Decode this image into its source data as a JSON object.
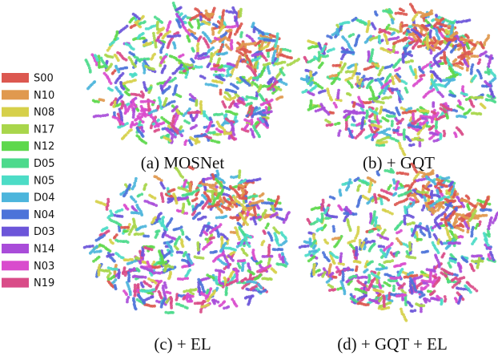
{
  "legend": [
    {
      "label": "S00",
      "color": "#dc5850"
    },
    {
      "label": "N10",
      "color": "#e0994f"
    },
    {
      "label": "N08",
      "color": "#d6d04a"
    },
    {
      "label": "N17",
      "color": "#a9d64b"
    },
    {
      "label": "N12",
      "color": "#5ed84c"
    },
    {
      "label": "D05",
      "color": "#4cda8c"
    },
    {
      "label": "N05",
      "color": "#4cdcc6"
    },
    {
      "label": "D04",
      "color": "#4cb5dc"
    },
    {
      "label": "N04",
      "color": "#4c73d9"
    },
    {
      "label": "D03",
      "color": "#6c55d9"
    },
    {
      "label": "N14",
      "color": "#a94cd9"
    },
    {
      "label": "N03",
      "color": "#d94ccd"
    },
    {
      "label": "N19",
      "color": "#d94c88"
    }
  ],
  "panels": [
    {
      "caption": "(a) MOSNet"
    },
    {
      "caption": "(b) + GQT"
    },
    {
      "caption": "(c) + EL"
    },
    {
      "caption": "(d) + GQT + EL"
    }
  ]
}
